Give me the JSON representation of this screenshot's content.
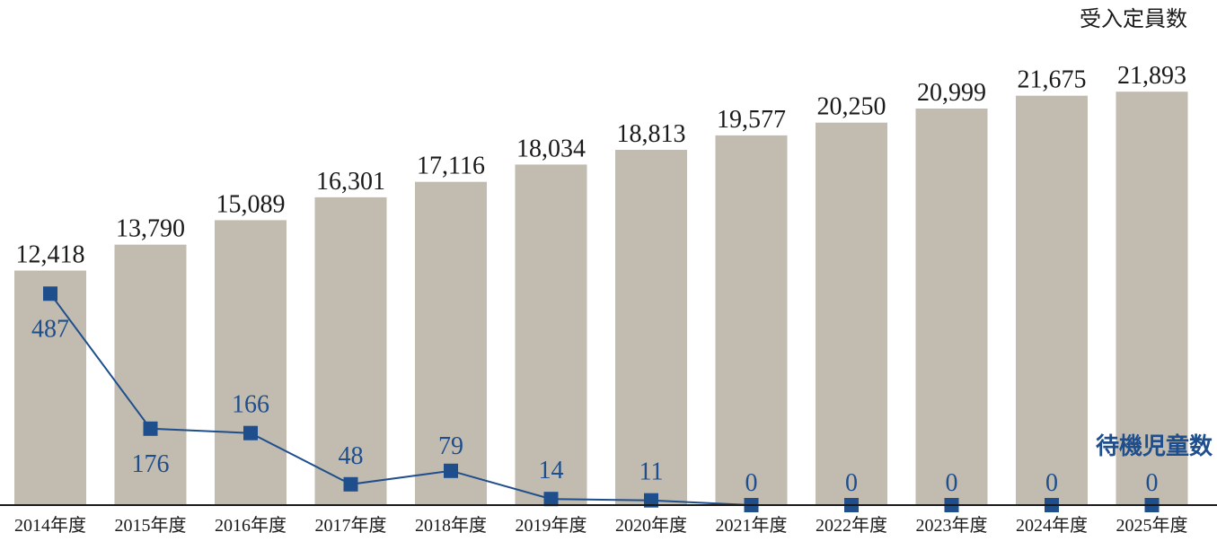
{
  "chart_data": {
    "type": "bar+line",
    "categories": [
      "2014年度",
      "2015年度",
      "2016年度",
      "2017年度",
      "2018年度",
      "2019年度",
      "2020年度",
      "2021年度",
      "2022年度",
      "2023年度",
      "2024年度",
      "2025年度"
    ],
    "series": [
      {
        "name": "受入定員数",
        "type": "bar",
        "values": [
          12418,
          13790,
          15089,
          16301,
          17116,
          18034,
          18813,
          19577,
          20250,
          20999,
          21675,
          21893
        ],
        "labels": [
          "12,418",
          "13,790",
          "15,089",
          "16,301",
          "17,116",
          "18,034",
          "18,813",
          "19,577",
          "20,250",
          "20,999",
          "21,675",
          "21,893"
        ]
      },
      {
        "name": "待機児童数",
        "type": "line",
        "values": [
          487,
          176,
          166,
          48,
          79,
          14,
          11,
          0,
          0,
          0,
          0,
          0
        ],
        "labels": [
          "487",
          "176",
          "166",
          "48",
          "79",
          "14",
          "11",
          "0",
          "0",
          "0",
          "0",
          "0"
        ]
      }
    ],
    "bar_ylim": [
      0,
      22000
    ],
    "line_ylim": [
      0,
      700
    ],
    "colors": {
      "bar": "#c1bbb0",
      "line": "#1f4e8c",
      "axis": "#1a1a1a"
    },
    "legend": {
      "bar_position": "top-right",
      "line_position": "right"
    }
  }
}
